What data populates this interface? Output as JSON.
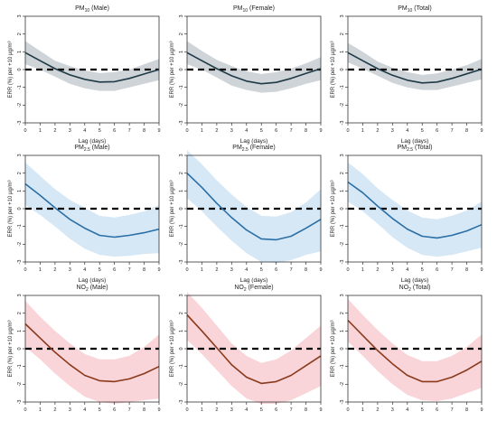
{
  "chart_data": [
    {
      "type": "line",
      "title": "PM10 (Male)",
      "title_parts": [
        "PM",
        "10",
        " (Male)"
      ],
      "xlabel": "Lag (days)",
      "ylabel": "ERR (%) per +10 µg/m³",
      "x": [
        0,
        1,
        2,
        3,
        4,
        5,
        6,
        7,
        8,
        9
      ],
      "series": [
        {
          "values": [
            0.95,
            0.5,
            0.05,
            -0.3,
            -0.55,
            -0.7,
            -0.68,
            -0.5,
            -0.25,
            0.0
          ],
          "lower": [
            0.3,
            0.0,
            -0.4,
            -0.8,
            -1.05,
            -1.2,
            -1.2,
            -1.0,
            -0.8,
            -0.6
          ],
          "upper": [
            1.6,
            1.05,
            0.5,
            0.2,
            -0.05,
            -0.2,
            -0.15,
            0.0,
            0.3,
            0.6
          ]
        }
      ],
      "color": "#1e3a46",
      "band_color": "#cfd4d9",
      "xlim": [
        0,
        9
      ],
      "ylim": [
        -3,
        3
      ],
      "reference_line": 0
    },
    {
      "type": "line",
      "title": "PM10 (Female)",
      "title_parts": [
        "PM",
        "10",
        " (Female)"
      ],
      "xlabel": "Lag (days)",
      "ylabel": "ERR (%) per +10 µg/m³",
      "x": [
        0,
        1,
        2,
        3,
        4,
        5,
        6,
        7,
        8,
        9
      ],
      "series": [
        {
          "values": [
            0.95,
            0.5,
            0.05,
            -0.35,
            -0.65,
            -0.8,
            -0.72,
            -0.5,
            -0.22,
            0.05
          ],
          "lower": [
            0.3,
            0.0,
            -0.45,
            -0.9,
            -1.15,
            -1.3,
            -1.25,
            -1.05,
            -0.8,
            -0.6
          ],
          "upper": [
            1.6,
            1.05,
            0.55,
            0.2,
            -0.1,
            -0.25,
            -0.15,
            0.05,
            0.35,
            0.7
          ]
        }
      ],
      "color": "#1e3a46",
      "band_color": "#cfd4d9",
      "xlim": [
        0,
        9
      ],
      "ylim": [
        -3,
        3
      ],
      "reference_line": 0
    },
    {
      "type": "line",
      "title": "PM10 (Total)",
      "title_parts": [
        "PM",
        "10",
        " (Total)"
      ],
      "xlabel": "Lag (days)",
      "ylabel": "ERR (%) per +10 µg/m³",
      "x": [
        0,
        1,
        2,
        3,
        4,
        5,
        6,
        7,
        8,
        9
      ],
      "series": [
        {
          "values": [
            0.95,
            0.5,
            0.05,
            -0.32,
            -0.6,
            -0.75,
            -0.7,
            -0.5,
            -0.24,
            0.02
          ],
          "lower": [
            0.4,
            0.05,
            -0.35,
            -0.75,
            -1.0,
            -1.15,
            -1.15,
            -0.95,
            -0.75,
            -0.55
          ],
          "upper": [
            1.5,
            1.0,
            0.45,
            0.1,
            -0.15,
            -0.3,
            -0.22,
            0.0,
            0.25,
            0.6
          ]
        }
      ],
      "color": "#1e3a46",
      "band_color": "#cfd4d9",
      "xlim": [
        0,
        9
      ],
      "ylim": [
        -3,
        3
      ],
      "reference_line": 0
    },
    {
      "type": "line",
      "title": "PM2.5 (Male)",
      "title_parts": [
        "PM",
        "2.5",
        " (Male)"
      ],
      "xlabel": "Lag (days)",
      "ylabel": "ERR (%) per +10 µg/m³",
      "x": [
        0,
        1,
        2,
        3,
        4,
        5,
        6,
        7,
        8,
        9
      ],
      "series": [
        {
          "values": [
            1.4,
            0.75,
            0.05,
            -0.6,
            -1.1,
            -1.5,
            -1.6,
            -1.5,
            -1.35,
            -1.15
          ],
          "lower": [
            0.2,
            -0.35,
            -1.0,
            -1.7,
            -2.25,
            -2.6,
            -2.7,
            -2.65,
            -2.55,
            -2.5
          ],
          "upper": [
            2.6,
            1.85,
            1.1,
            0.5,
            0.05,
            -0.4,
            -0.5,
            -0.35,
            -0.15,
            0.2
          ]
        }
      ],
      "color": "#2a6fa6",
      "band_color": "#d6e8f6",
      "xlim": [
        0,
        9
      ],
      "ylim": [
        -3,
        3
      ],
      "reference_line": 0
    },
    {
      "type": "line",
      "title": "PM2.5 (Female)",
      "title_parts": [
        "PM",
        "2.5",
        " (Female)"
      ],
      "xlabel": "Lag (days)",
      "ylabel": "ERR (%) per +10 µg/m³",
      "x": [
        0,
        1,
        2,
        3,
        4,
        5,
        6,
        7,
        8,
        9
      ],
      "series": [
        {
          "values": [
            2.0,
            1.2,
            0.3,
            -0.5,
            -1.2,
            -1.7,
            -1.75,
            -1.55,
            -1.1,
            -0.6
          ],
          "lower": [
            0.6,
            -0.15,
            -1.0,
            -1.8,
            -2.5,
            -3.0,
            -3.05,
            -2.9,
            -2.6,
            -2.4
          ],
          "upper": [
            3.3,
            2.5,
            1.6,
            0.8,
            0.1,
            -0.4,
            -0.45,
            -0.2,
            0.35,
            1.1
          ]
        }
      ],
      "color": "#2a6fa6",
      "band_color": "#d6e8f6",
      "xlim": [
        0,
        9
      ],
      "ylim": [
        -3,
        3
      ],
      "reference_line": 0
    },
    {
      "type": "line",
      "title": "PM2.5 (Total)",
      "title_parts": [
        "PM",
        "2.5",
        " (Total)"
      ],
      "xlabel": "Lag (days)",
      "ylabel": "ERR (%) per +10 µg/m³",
      "x": [
        0,
        1,
        2,
        3,
        4,
        5,
        6,
        7,
        8,
        9
      ],
      "series": [
        {
          "values": [
            1.5,
            0.9,
            0.15,
            -0.55,
            -1.15,
            -1.55,
            -1.65,
            -1.5,
            -1.25,
            -0.9
          ],
          "lower": [
            0.4,
            -0.15,
            -0.85,
            -1.6,
            -2.2,
            -2.6,
            -2.7,
            -2.6,
            -2.4,
            -2.2
          ],
          "upper": [
            2.6,
            1.95,
            1.15,
            0.5,
            -0.1,
            -0.5,
            -0.6,
            -0.4,
            -0.1,
            0.4
          ]
        }
      ],
      "color": "#2a6fa6",
      "band_color": "#d6e8f6",
      "xlim": [
        0,
        9
      ],
      "ylim": [
        -3,
        3
      ],
      "reference_line": 0
    },
    {
      "type": "line",
      "title": "NO2 (Male)",
      "title_parts": [
        "NO",
        "2",
        " (Male)"
      ],
      "xlabel": "Lag (days)",
      "ylabel": "ERR (%) per +10 µg/m³",
      "x": [
        0,
        1,
        2,
        3,
        4,
        5,
        6,
        7,
        8,
        9
      ],
      "series": [
        {
          "values": [
            1.4,
            0.6,
            -0.2,
            -0.9,
            -1.5,
            -1.8,
            -1.85,
            -1.7,
            -1.4,
            -1.0
          ],
          "lower": [
            0.1,
            -0.6,
            -1.4,
            -2.1,
            -2.7,
            -3.0,
            -3.1,
            -3.0,
            -2.9,
            -2.8
          ],
          "upper": [
            2.7,
            1.8,
            1.0,
            0.3,
            -0.3,
            -0.6,
            -0.6,
            -0.4,
            0.1,
            0.8
          ]
        }
      ],
      "color": "#8a3a1c",
      "band_color": "#f9d4d8",
      "xlim": [
        0,
        9
      ],
      "ylim": [
        -3,
        3
      ],
      "reference_line": 0
    },
    {
      "type": "line",
      "title": "NO2 (Female)",
      "title_parts": [
        "NO",
        "2",
        " (Female)"
      ],
      "xlabel": "Lag (days)",
      "ylabel": "ERR (%) per +10 µg/m³",
      "x": [
        0,
        1,
        2,
        3,
        4,
        5,
        6,
        7,
        8,
        9
      ],
      "series": [
        {
          "values": [
            1.9,
            1.0,
            0.05,
            -0.9,
            -1.6,
            -1.95,
            -1.85,
            -1.5,
            -0.95,
            -0.4
          ],
          "lower": [
            0.5,
            -0.3,
            -1.2,
            -2.1,
            -2.8,
            -3.1,
            -3.1,
            -2.9,
            -2.5,
            -2.1
          ],
          "upper": [
            3.2,
            2.3,
            1.3,
            0.3,
            -0.4,
            -0.8,
            -0.6,
            -0.1,
            0.6,
            1.3
          ]
        }
      ],
      "color": "#8a3a1c",
      "band_color": "#f9d4d8",
      "xlim": [
        0,
        9
      ],
      "ylim": [
        -3,
        3
      ],
      "reference_line": 0
    },
    {
      "type": "line",
      "title": "NO2 (Total)",
      "title_parts": [
        "NO",
        "2",
        " (Total)"
      ],
      "xlabel": "Lag (days)",
      "ylabel": "ERR (%) per +10 µg/m³",
      "x": [
        0,
        1,
        2,
        3,
        4,
        5,
        6,
        7,
        8,
        9
      ],
      "series": [
        {
          "values": [
            1.6,
            0.75,
            -0.1,
            -0.85,
            -1.5,
            -1.85,
            -1.85,
            -1.6,
            -1.2,
            -0.7
          ],
          "lower": [
            0.4,
            -0.4,
            -1.25,
            -2.0,
            -2.6,
            -2.9,
            -2.95,
            -2.8,
            -2.5,
            -2.2
          ],
          "upper": [
            2.8,
            1.9,
            1.05,
            0.3,
            -0.35,
            -0.7,
            -0.7,
            -0.4,
            0.1,
            0.8
          ]
        }
      ],
      "color": "#8a3a1c",
      "band_color": "#f9d4d8",
      "xlim": [
        0,
        9
      ],
      "ylim": [
        -3,
        3
      ],
      "reference_line": 0
    }
  ]
}
